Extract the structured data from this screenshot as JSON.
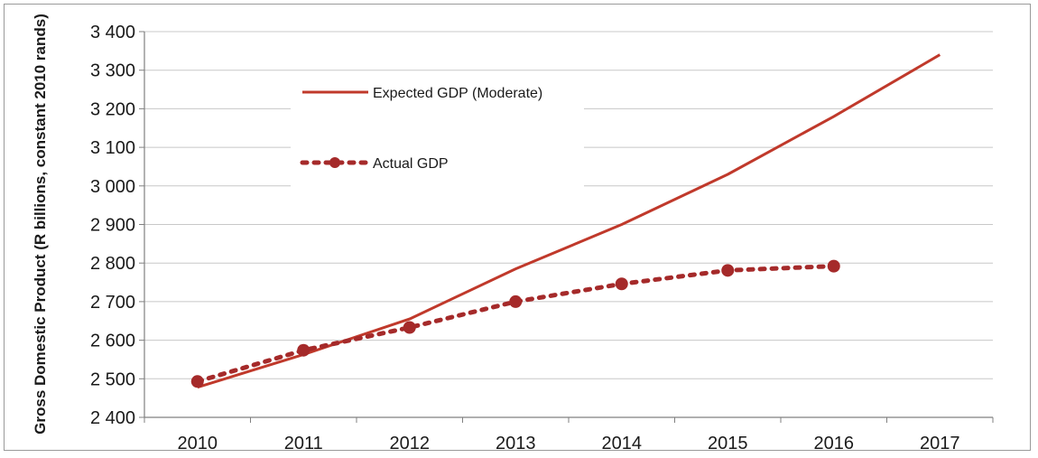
{
  "chart_data": {
    "type": "line",
    "title": "",
    "xlabel": "",
    "ylabel": "Gross Domestic Product (R billions, constant 2010 rands)",
    "categories": [
      "2010",
      "2011",
      "2012",
      "2013",
      "2014",
      "2015",
      "2016",
      "2017"
    ],
    "y_ticks": [
      "2 400",
      "2 500",
      "2 600",
      "2 700",
      "2 800",
      "2 900",
      "3 000",
      "3 100",
      "3 200",
      "3 300",
      "3 400"
    ],
    "ylim": [
      2400,
      3400
    ],
    "grid": "horizontal",
    "legend_position": "top-left",
    "series": [
      {
        "name": "Expected GDP (Moderate)",
        "style": "solid",
        "color": "#c0392b",
        "values": [
          2478,
          2563,
          2655,
          2785,
          2900,
          3030,
          3180,
          3340
        ]
      },
      {
        "name": "Actual GDP",
        "style": "dotted-markers",
        "color": "#a52a2a",
        "values": [
          2493,
          2574,
          2633,
          2700,
          2746,
          2781,
          2792,
          null
        ]
      }
    ]
  }
}
